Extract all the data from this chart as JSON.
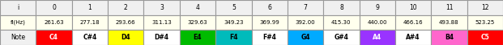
{
  "headers": [
    "i",
    "0",
    "1",
    "2",
    "3",
    "4",
    "5",
    "6",
    "7",
    "8",
    "9",
    "10",
    "11",
    "12"
  ],
  "freq_row_label": "fi(Hz)",
  "freq_values": [
    "261.63",
    "277.18",
    "293.66",
    "311.13",
    "329.63",
    "349.23",
    "369.99",
    "392.00",
    "415.30",
    "440.00",
    "466.16",
    "493.88",
    "523.25"
  ],
  "note_row_label": "Note",
  "notes": [
    "C4",
    "C#4",
    "D4",
    "D#4",
    "E4",
    "F4",
    "F#4",
    "G4",
    "G#4",
    "A4",
    "A#4",
    "B4",
    "C5"
  ],
  "note_colors": [
    "#ff0000",
    "#ffffff",
    "#ffff00",
    "#ffffff",
    "#00bb00",
    "#00bbbb",
    "#ffffff",
    "#00aaff",
    "#ffffff",
    "#9933ff",
    "#ffffff",
    "#ff66cc",
    "#ff0000"
  ],
  "note_text_colors": [
    "#ffffff",
    "#000000",
    "#000000",
    "#000000",
    "#000000",
    "#000000",
    "#000000",
    "#000000",
    "#000000",
    "#ffffff",
    "#000000",
    "#000000",
    "#ffffff"
  ],
  "header_bg": "#f0f0f0",
  "freq_bg": "#ffffee",
  "border_color": "#999999",
  "figwidth": 6.21,
  "figheight": 0.56,
  "dpi": 100
}
